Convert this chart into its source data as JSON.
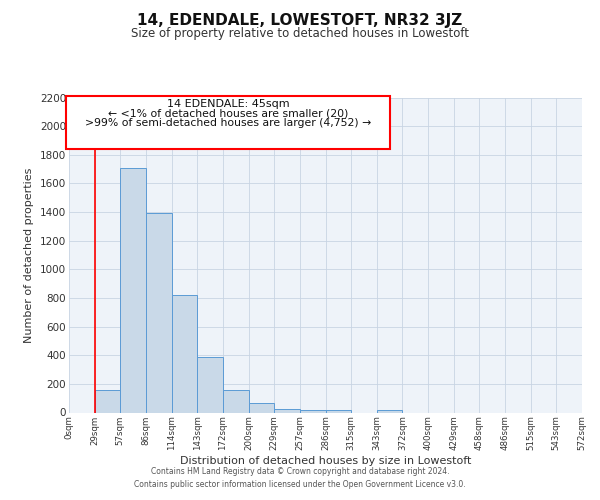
{
  "title": "14, EDENDALE, LOWESTOFT, NR32 3JZ",
  "subtitle": "Size of property relative to detached houses in Lowestoft",
  "xlabel": "Distribution of detached houses by size in Lowestoft",
  "ylabel": "Number of detached properties",
  "bin_labels": [
    "0sqm",
    "29sqm",
    "57sqm",
    "86sqm",
    "114sqm",
    "143sqm",
    "172sqm",
    "200sqm",
    "229sqm",
    "257sqm",
    "286sqm",
    "315sqm",
    "343sqm",
    "372sqm",
    "400sqm",
    "429sqm",
    "458sqm",
    "486sqm",
    "515sqm",
    "543sqm",
    "572sqm"
  ],
  "bar_values": [
    0,
    155,
    1710,
    1390,
    820,
    385,
    160,
    65,
    25,
    20,
    20,
    0,
    20,
    0,
    0,
    0,
    0,
    0,
    0,
    0
  ],
  "bar_color": "#c9d9e8",
  "bar_edge_color": "#5b9bd5",
  "grid_color": "#c8d4e3",
  "background_color": "#eef3f9",
  "ylim": [
    0,
    2200
  ],
  "yticks": [
    0,
    200,
    400,
    600,
    800,
    1000,
    1200,
    1400,
    1600,
    1800,
    2000,
    2200
  ],
  "red_line_x": 1,
  "annotation_line1": "14 EDENDALE: 45sqm",
  "annotation_line2": "← <1% of detached houses are smaller (20)",
  "annotation_line3": ">99% of semi-detached houses are larger (4,752) →",
  "footer_line1": "Contains HM Land Registry data © Crown copyright and database right 2024.",
  "footer_line2": "Contains public sector information licensed under the Open Government Licence v3.0."
}
